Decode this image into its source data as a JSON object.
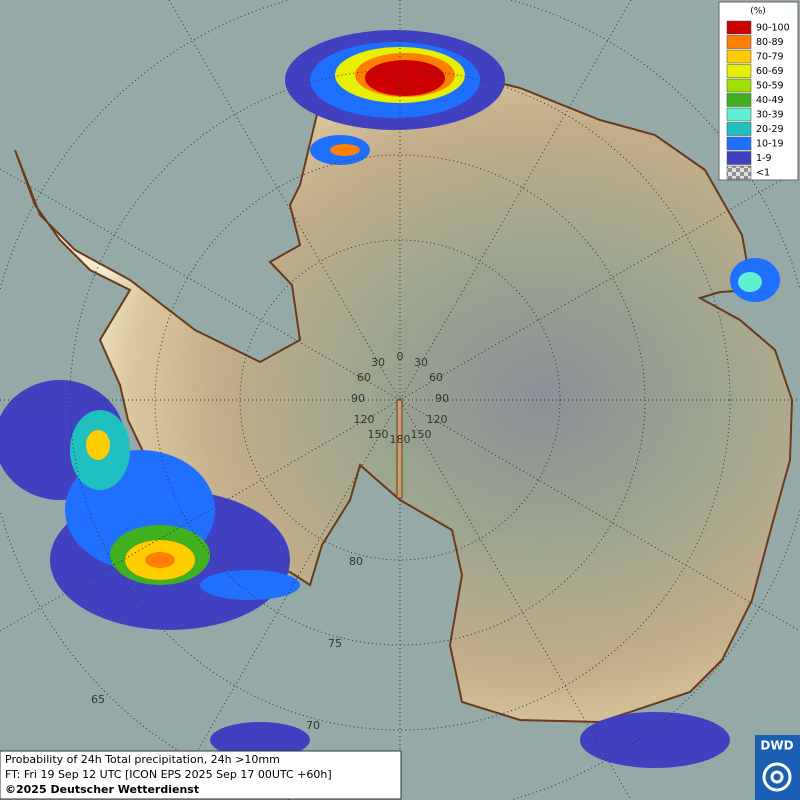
{
  "legend": {
    "title": "(%)",
    "entries": [
      {
        "label": "90-100",
        "color": "#cc0000"
      },
      {
        "label": "80-89",
        "color": "#ff7f00"
      },
      {
        "label": "70-79",
        "color": "#ffcc00"
      },
      {
        "label": "60-69",
        "color": "#e6f000"
      },
      {
        "label": "50-59",
        "color": "#a0e000"
      },
      {
        "label": "40-49",
        "color": "#40b020"
      },
      {
        "label": "30-39",
        "color": "#60f0d0"
      },
      {
        "label": "20-29",
        "color": "#20c0c0"
      },
      {
        "label": "10-19",
        "color": "#2070ff"
      },
      {
        "label": "1-9",
        "color": "#4040c0"
      },
      {
        "label": "<1",
        "color": "#b0b0b0"
      }
    ]
  },
  "graticule_labels": {
    "longitude": [
      "0",
      "30",
      "30",
      "60",
      "60",
      "90",
      "90",
      "120",
      "120",
      "150",
      "150",
      "180"
    ],
    "latitude": [
      "80",
      "75",
      "70",
      "65"
    ]
  },
  "caption": {
    "lines": [
      "Probability of 24h Total precipitation, 24h >10mm",
      "FT: Fri 19 Sep 12 UTC [ICON EPS 2025 Sep 17 00UTC +60h]"
    ],
    "copyright": "©2025 Deutscher Wetterdienst"
  },
  "logo": "DWD"
}
